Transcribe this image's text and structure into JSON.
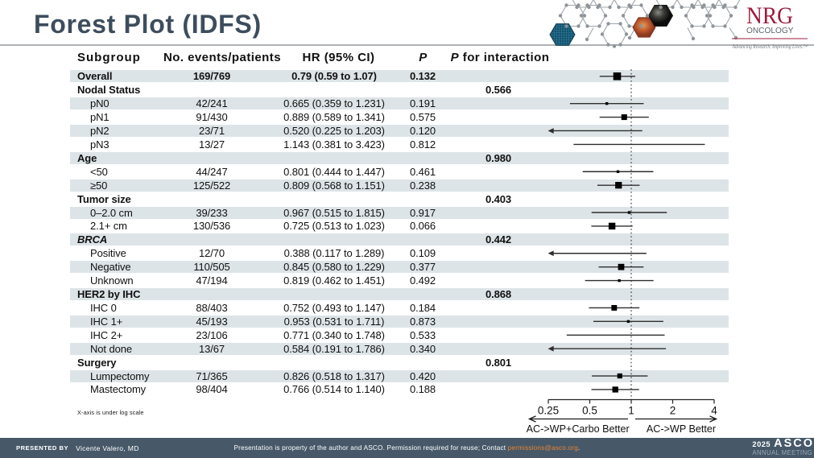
{
  "title": "Forest Plot (IDFS)",
  "logo": {
    "name": "NRG",
    "division": "ONCOLOGY",
    "tagline": "Advancing Research. Improving Lives.™"
  },
  "table": {
    "headers": {
      "subgroup": "Subgroup",
      "events": "No. events/patients",
      "hr": "HR (95% CI)",
      "p": "P",
      "p_interaction_p": "P",
      "p_interaction_rest": "for interaction"
    }
  },
  "chart_data": {
    "type": "forest",
    "x_scale": "log2",
    "x_ticks": [
      0.25,
      0.5,
      1,
      2,
      4
    ],
    "x_range": [
      0.25,
      4
    ],
    "reference_line": 1,
    "arrow_left_label": "AC->WP+Carbo Better",
    "arrow_right_label": "AC->WP Better",
    "footnote": "X-axis is under log scale",
    "rows": [
      {
        "label": "Overall",
        "level": "overall",
        "events": "169/769",
        "hr_text": "0.79 (0.59 to 1.07)",
        "p": "0.132",
        "p_interaction": "",
        "hr": 0.79,
        "low": 0.59,
        "high": 1.07,
        "n_events": 169
      },
      {
        "label": "Nodal Status",
        "level": "category",
        "p_interaction": "0.566"
      },
      {
        "label": "pN0",
        "level": "item",
        "events": "42/241",
        "hr_text": "0.665 (0.359 to 1.231)",
        "p": "0.191",
        "hr": 0.665,
        "low": 0.359,
        "high": 1.231,
        "n_events": 42
      },
      {
        "label": "pN1",
        "level": "item",
        "events": "91/430",
        "hr_text": "0.889 (0.589 to 1.341)",
        "p": "0.575",
        "hr": 0.889,
        "low": 0.589,
        "high": 1.341,
        "n_events": 91
      },
      {
        "label": "pN2",
        "level": "item",
        "events": "23/71",
        "hr_text": "0.520 (0.225 to 1.203)",
        "p": "0.120",
        "hr": 0.52,
        "low": 0.225,
        "high": 1.203,
        "n_events": 23
      },
      {
        "label": "pN3",
        "level": "item",
        "events": "13/27",
        "hr_text": "1.143 (0.381 to 3.423)",
        "p": "0.812",
        "hr": 1.143,
        "low": 0.381,
        "high": 3.423,
        "n_events": 13
      },
      {
        "label": "Age",
        "level": "category",
        "p_interaction": "0.980"
      },
      {
        "label": "<50",
        "level": "item",
        "events": "44/247",
        "hr_text": "0.801 (0.444 to 1.447)",
        "p": "0.461",
        "hr": 0.801,
        "low": 0.444,
        "high": 1.447,
        "n_events": 44
      },
      {
        "label": "≥50",
        "level": "item",
        "events": "125/522",
        "hr_text": "0.809 (0.568 to 1.151)",
        "p": "0.238",
        "hr": 0.809,
        "low": 0.568,
        "high": 1.151,
        "n_events": 125
      },
      {
        "label": "Tumor size",
        "level": "category",
        "p_interaction": "0.403"
      },
      {
        "label": "0–2.0 cm",
        "level": "item",
        "events": "39/233",
        "hr_text": "0.967 (0.515 to 1.815)",
        "p": "0.917",
        "hr": 0.967,
        "low": 0.515,
        "high": 1.815,
        "n_events": 39
      },
      {
        "label": "2.1+ cm",
        "level": "item",
        "events": "130/536",
        "hr_text": "0.725 (0.513 to 1.023)",
        "p": "0.066",
        "hr": 0.725,
        "low": 0.513,
        "high": 1.023,
        "n_events": 130
      },
      {
        "label": "BRCA",
        "level": "category",
        "italic": true,
        "p_interaction": "0.442"
      },
      {
        "label": "Positive",
        "level": "item",
        "events": "12/70",
        "hr_text": "0.388 (0.117 to 1.289)",
        "p": "0.109",
        "hr": 0.388,
        "low": 0.117,
        "high": 1.289,
        "n_events": 12
      },
      {
        "label": "Negative",
        "level": "item",
        "events": "110/505",
        "hr_text": "0.845 (0.580 to 1.229)",
        "p": "0.377",
        "hr": 0.845,
        "low": 0.58,
        "high": 1.229,
        "n_events": 110
      },
      {
        "label": "Unknown",
        "level": "item",
        "events": "47/194",
        "hr_text": "0.819 (0.462 to 1.451)",
        "p": "0.492",
        "hr": 0.819,
        "low": 0.462,
        "high": 1.451,
        "n_events": 47
      },
      {
        "label": "HER2 by IHC",
        "level": "category",
        "p_interaction": "0.868"
      },
      {
        "label": "IHC 0",
        "level": "item",
        "events": "88/403",
        "hr_text": "0.752 (0.493 to 1.147)",
        "p": "0.184",
        "hr": 0.752,
        "low": 0.493,
        "high": 1.147,
        "n_events": 88
      },
      {
        "label": "IHC 1+",
        "level": "item",
        "events": "45/193",
        "hr_text": "0.953 (0.531 to 1.711)",
        "p": "0.873",
        "hr": 0.953,
        "low": 0.531,
        "high": 1.711,
        "n_events": 45
      },
      {
        "label": "IHC 2+",
        "level": "item",
        "events": "23/106",
        "hr_text": "0.771 (0.340 to 1.748)",
        "p": "0.533",
        "hr": 0.771,
        "low": 0.34,
        "high": 1.748,
        "n_events": 23
      },
      {
        "label": "Not done",
        "level": "item",
        "events": "13/67",
        "hr_text": "0.584 (0.191 to 1.786)",
        "p": "0.340",
        "hr": 0.584,
        "low": 0.191,
        "high": 1.786,
        "n_events": 13
      },
      {
        "label": "Surgery",
        "level": "category",
        "p_interaction": "0.801"
      },
      {
        "label": "Lumpectomy",
        "level": "item",
        "events": "71/365",
        "hr_text": "0.826 (0.518 to 1.317)",
        "p": "0.420",
        "hr": 0.826,
        "low": 0.518,
        "high": 1.317,
        "n_events": 71
      },
      {
        "label": "Mastectomy",
        "level": "item",
        "events": "98/404",
        "hr_text": "0.766 (0.514 to 1.140)",
        "p": "0.188",
        "hr": 0.766,
        "low": 0.514,
        "high": 1.14,
        "n_events": 98
      }
    ]
  },
  "footer": {
    "presented_by_label": "PRESENTED BY",
    "presenter": "Vicente Valero, MD",
    "disclaimer_prefix": "Presentation is property of the author and ASCO. Permission required for reuse; Contact ",
    "disclaimer_link": "permissions@asco.org",
    "disclaimer_suffix": ".",
    "meeting_year": "2025",
    "meeting_org": "ASCO",
    "meeting_name": "ANNUAL MEETING"
  },
  "colors": {
    "title": "#3d4d5d",
    "stripe": "#dde4e7",
    "footer_bar": "#475969",
    "email_link": "#e8832f",
    "nrg_crimson": "#9e1b3c",
    "marker": "#000000"
  }
}
